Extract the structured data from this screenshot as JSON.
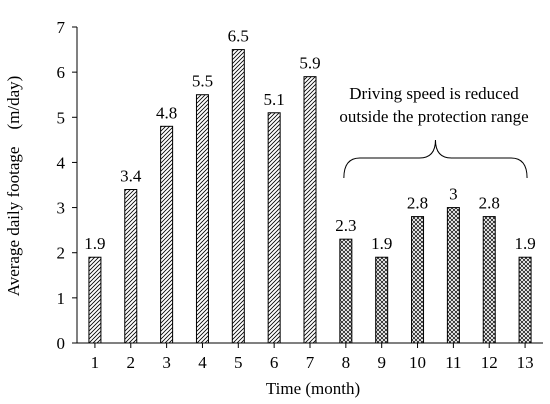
{
  "chart_data": {
    "type": "bar",
    "title": "",
    "xlabel": "Time (month)",
    "ylabel": "Average daily footage　(m/day)",
    "categories": [
      "1",
      "2",
      "3",
      "4",
      "5",
      "6",
      "7",
      "8",
      "9",
      "10",
      "11",
      "12",
      "13"
    ],
    "values": [
      1.9,
      3.4,
      4.8,
      5.5,
      6.5,
      5.1,
      5.9,
      2.3,
      1.9,
      2.8,
      3,
      2.8,
      1.9
    ],
    "data_labels": [
      "1.9",
      "3.4",
      "4.8",
      "5.5",
      "6.5",
      "5.1",
      "5.9",
      "2.3",
      "1.9",
      "2.8",
      "3",
      "2.8",
      "1.9"
    ],
    "ylim": [
      0,
      7
    ],
    "yticks": [
      "0",
      "1",
      "2",
      "3",
      "4",
      "5",
      "6",
      "7"
    ],
    "grid": false,
    "legend": "none",
    "bar_fill_patterns": {
      "months_1_7": "diagonal-hatch",
      "months_8_13": "cross-hatch"
    },
    "annotation": {
      "lines": [
        "Driving speed is reduced",
        "outside the protection range"
      ],
      "brace_span_categories": [
        "8",
        "13"
      ]
    },
    "colors": {
      "bar_stroke": "#000000",
      "text": "#000000",
      "axis": "#000000"
    }
  }
}
